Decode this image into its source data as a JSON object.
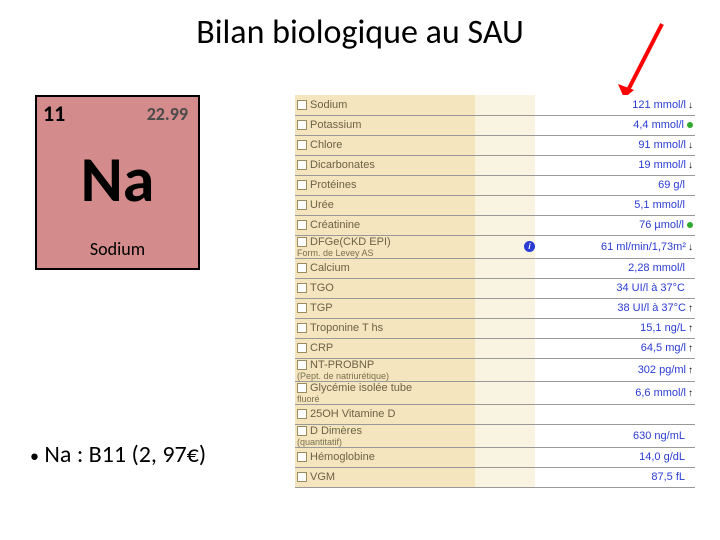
{
  "title": "Bilan biologique au SAU",
  "arrow_color": "#ff0000",
  "element": {
    "number": "11",
    "mass": "22.99",
    "symbol": "Na",
    "name": "Sodium",
    "bg": "#d38b8b"
  },
  "bullet_text": "Na : B11 (2, 97€)",
  "rows": [
    {
      "label": "Sodium",
      "value": "121 mmol/l",
      "indicator": "down"
    },
    {
      "label": "Potassium",
      "value": "4,4 mmol/l",
      "indicator": "green"
    },
    {
      "label": "Chlore",
      "value": "91 mmol/l",
      "indicator": "down"
    },
    {
      "label": "Dicarbonates",
      "value": "19 mmol/l",
      "indicator": "down"
    },
    {
      "label": "Protéines",
      "value": "69 g/l",
      "indicator": ""
    },
    {
      "label": "Urée",
      "value": "5,1 mmol/l",
      "indicator": ""
    },
    {
      "label": "Créatinine",
      "value": "76 µmol/l",
      "indicator": "green"
    },
    {
      "label": "DFGe(CKD EPI)",
      "sub": "Form. de Levey AS",
      "value": "61 ml/min/1,73m²",
      "indicator": "down",
      "info": true
    },
    {
      "label": "Calcium",
      "value": "2,28 mmol/l",
      "indicator": ""
    },
    {
      "label": "TGO",
      "value": "34 UI/l à 37°C",
      "indicator": ""
    },
    {
      "label": "TGP",
      "value": "38 UI/l à 37°C",
      "indicator": "up"
    },
    {
      "label": "Troponine T hs",
      "value": "15,1 ng/L",
      "indicator": "up"
    },
    {
      "label": "CRP",
      "value": "64,5 mg/l",
      "indicator": "up"
    },
    {
      "label": "NT-PROBNP",
      "sub": "(Pept. de natriurétique)",
      "value": "302 pg/ml",
      "indicator": "up"
    },
    {
      "label": "Glycémie isolée tube",
      "sub": "fluoré",
      "value": "6,6 mmol/l",
      "indicator": "up"
    },
    {
      "label": "25OH Vitamine D",
      "value": "",
      "indicator": ""
    },
    {
      "label": "D Dimères",
      "sub": "(quantitatif)",
      "value": "630 ng/mL",
      "indicator": ""
    },
    {
      "label": "Hémoglobine",
      "value": "14,0 g/dL",
      "indicator": ""
    },
    {
      "label": "VGM",
      "value": "87,5 fL",
      "indicator": ""
    }
  ]
}
